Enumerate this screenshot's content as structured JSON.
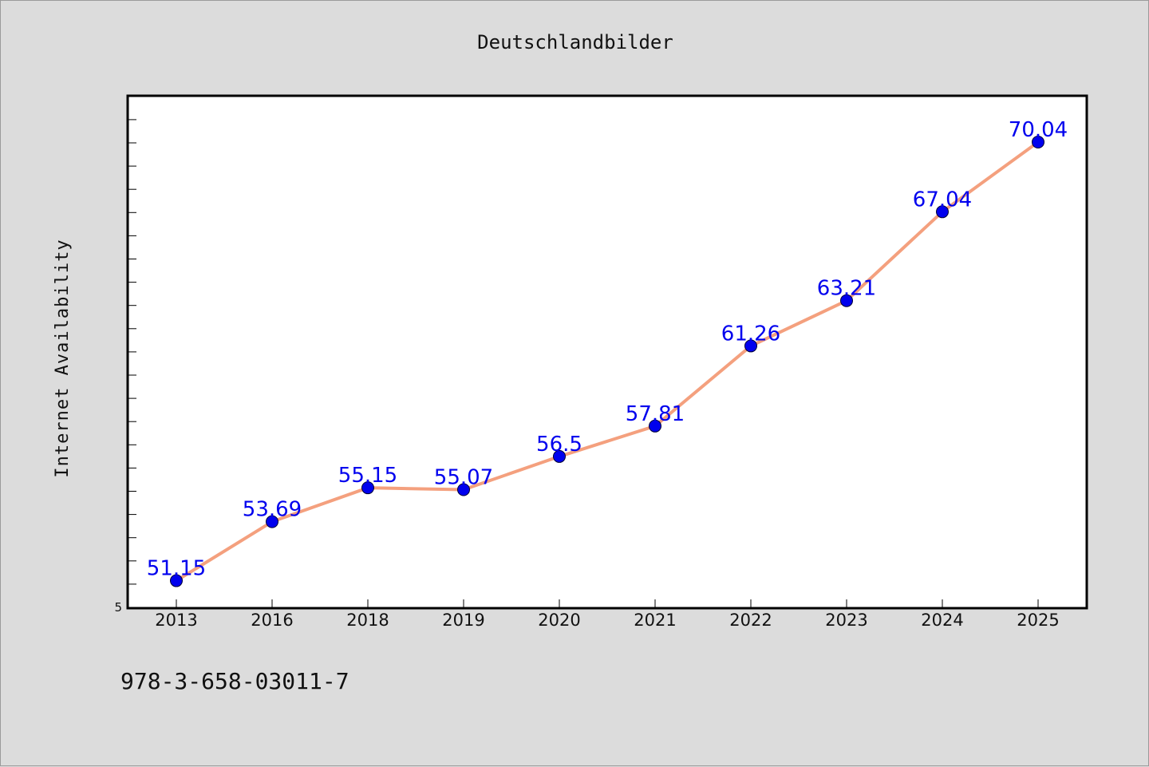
{
  "footer": {
    "code": "978-3-658-03011-7"
  },
  "colors": {
    "background": "#dcdcdc",
    "plot_background": "#ffffff",
    "line": "#f4a07e",
    "marker": "#0000ee",
    "data_label": "#0000ee"
  },
  "chart_data": {
    "type": "line",
    "title": "Deutschlandbilder",
    "xlabel": "",
    "ylabel": "Internet Availability",
    "categories": [
      "2013",
      "2016",
      "2018",
      "2019",
      "2020",
      "2021",
      "2022",
      "2023",
      "2024",
      "2025"
    ],
    "series": [
      {
        "values": [
          51.15,
          53.69,
          55.15,
          55.07,
          56.5,
          57.81,
          61.26,
          63.21,
          67.04,
          70.04
        ],
        "labels": [
          "51.15",
          "53.69",
          "55.15",
          "55.07",
          "56.5",
          "57.81",
          "61.26",
          "63.21",
          "67.04",
          "70.04"
        ]
      }
    ],
    "ylim": [
      50,
      72
    ],
    "ytick_labels": [
      "5"
    ],
    "grid": false,
    "legend": "none"
  }
}
